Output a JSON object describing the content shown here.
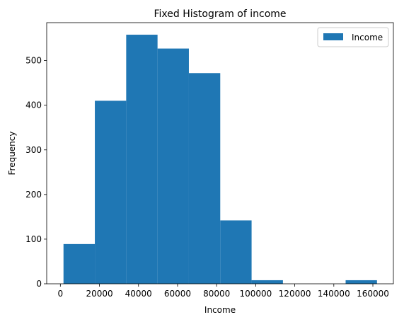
{
  "chart_data": {
    "type": "bar",
    "title": "Fixed Histogram of income",
    "xlabel": "Income",
    "ylabel": "Frequency",
    "xlim": [
      -7000,
      170500
    ],
    "ylim": [
      0,
      585
    ],
    "xticks": [
      0,
      20000,
      40000,
      60000,
      80000,
      100000,
      120000,
      140000,
      160000
    ],
    "yticks": [
      0,
      100,
      200,
      300,
      400,
      500
    ],
    "bin_edges": [
      1600,
      17650,
      33700,
      49750,
      65800,
      81850,
      97900,
      113950,
      130000,
      146050,
      162100
    ],
    "series": [
      {
        "name": "Income",
        "values": [
          89,
          410,
          558,
          527,
          472,
          142,
          8,
          0,
          0,
          8
        ],
        "color": "#1f77b4"
      }
    ],
    "legend": {
      "position": "top-right"
    },
    "grid": false
  }
}
